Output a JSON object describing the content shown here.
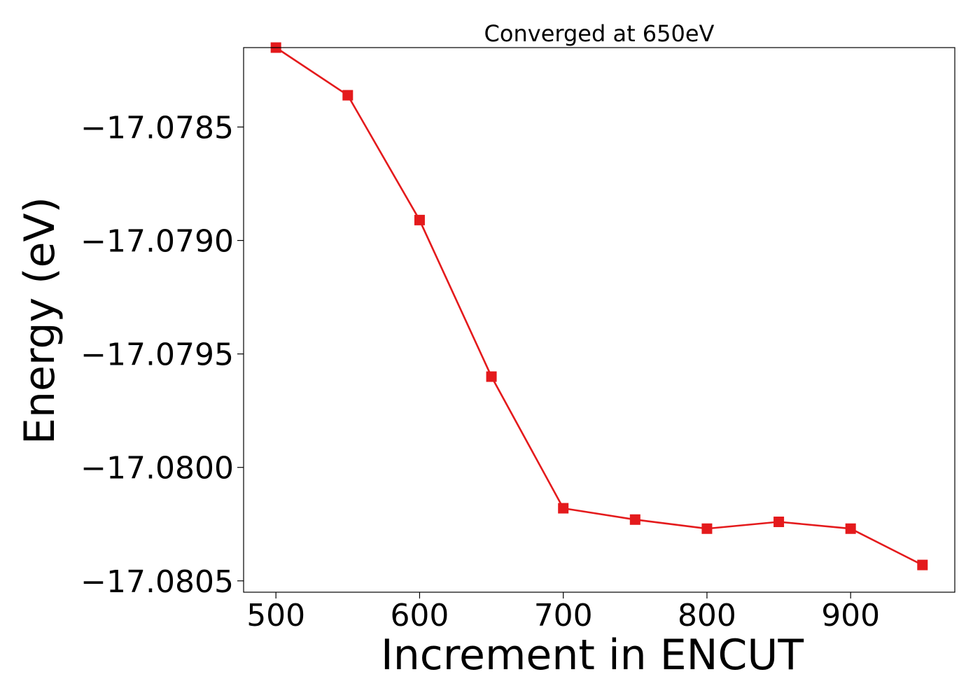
{
  "chart_data": {
    "type": "line",
    "title": "Converged at 650eV",
    "xlabel": "Increment in ENCUT",
    "ylabel": "Energy (eV)",
    "xlim": [
      477.5,
      972.5
    ],
    "ylim": [
      -17.08055,
      -17.07815
    ],
    "x_ticks": [
      500,
      600,
      700,
      800,
      900
    ],
    "x_tick_labels": [
      "500",
      "600",
      "700",
      "800",
      "900"
    ],
    "y_ticks": [
      -17.0785,
      -17.079,
      -17.0795,
      -17.08,
      -17.0805
    ],
    "y_tick_labels": [
      "−17.0785",
      "−17.0790",
      "−17.0795",
      "−17.0800",
      "−17.0805"
    ],
    "grid": false,
    "series": [
      {
        "color": "#e41a1c",
        "marker": "square",
        "x": [
          500,
          550,
          600,
          650,
          700,
          750,
          800,
          850,
          900,
          950
        ],
        "y": [
          -17.07815,
          -17.07836,
          -17.07891,
          -17.0796,
          -17.08018,
          -17.08023,
          -17.08027,
          -17.08024,
          -17.08027,
          -17.08043
        ]
      }
    ]
  }
}
